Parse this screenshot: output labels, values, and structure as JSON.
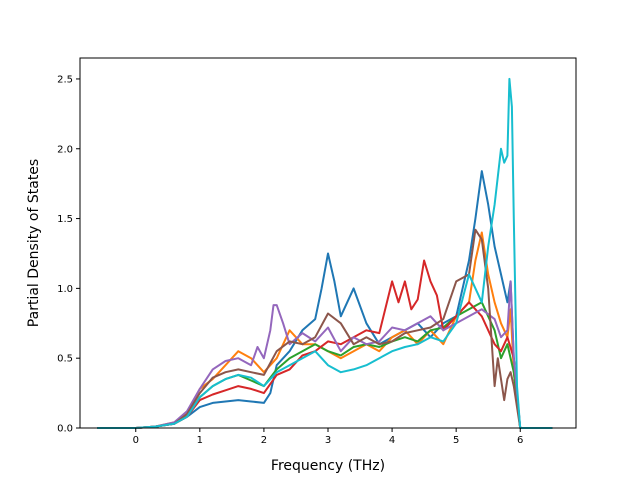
{
  "chart_data": {
    "type": "line",
    "title": "",
    "xlabel": "Frequency (THz)",
    "ylabel": "Partial Density of States",
    "xlim": [
      -0.87,
      6.87
    ],
    "ylim": [
      0.0,
      2.65
    ],
    "xticks": [
      0,
      1,
      2,
      3,
      4,
      5,
      6
    ],
    "xtick_labels": [
      "0",
      "1",
      "2",
      "3",
      "4",
      "5",
      "6"
    ],
    "yticks": [
      0.0,
      0.5,
      1.0,
      1.5,
      2.0,
      2.5
    ],
    "ytick_labels": [
      "0.0",
      "0.5",
      "1.0",
      "1.5",
      "2.0",
      "2.5"
    ],
    "grid": false,
    "series": [
      {
        "color": "#1f77b4",
        "x": [
          -0.6,
          0.0,
          0.3,
          0.6,
          0.8,
          1.0,
          1.2,
          1.4,
          1.6,
          1.8,
          2.0,
          2.1,
          2.2,
          2.4,
          2.6,
          2.8,
          2.9,
          3.0,
          3.1,
          3.2,
          3.4,
          3.6,
          3.8,
          4.0,
          4.2,
          4.4,
          4.6,
          4.8,
          5.0,
          5.2,
          5.3,
          5.4,
          5.5,
          5.6,
          5.7,
          5.75,
          5.8,
          5.85,
          5.9,
          6.0,
          6.5
        ],
        "y": [
          0.0,
          0.0,
          0.01,
          0.03,
          0.08,
          0.15,
          0.18,
          0.19,
          0.2,
          0.19,
          0.18,
          0.25,
          0.45,
          0.55,
          0.7,
          0.78,
          1.0,
          1.25,
          1.05,
          0.8,
          1.0,
          0.75,
          0.6,
          0.65,
          0.7,
          0.75,
          0.65,
          0.75,
          0.8,
          1.2,
          1.5,
          1.84,
          1.6,
          1.3,
          1.1,
          1.0,
          0.9,
          1.05,
          0.5,
          0.0,
          0.0
        ]
      },
      {
        "color": "#ff7f0e",
        "x": [
          -0.6,
          0.0,
          0.3,
          0.6,
          0.8,
          1.0,
          1.2,
          1.4,
          1.6,
          1.8,
          2.0,
          2.2,
          2.4,
          2.6,
          2.8,
          3.0,
          3.2,
          3.4,
          3.6,
          3.8,
          4.0,
          4.2,
          4.4,
          4.6,
          4.8,
          5.0,
          5.2,
          5.3,
          5.4,
          5.5,
          5.6,
          5.7,
          5.8,
          5.85,
          5.9,
          6.0,
          6.5
        ],
        "y": [
          0.0,
          0.0,
          0.01,
          0.04,
          0.1,
          0.28,
          0.35,
          0.45,
          0.55,
          0.5,
          0.4,
          0.5,
          0.7,
          0.6,
          0.6,
          0.55,
          0.5,
          0.55,
          0.6,
          0.55,
          0.65,
          0.7,
          0.6,
          0.7,
          0.6,
          0.8,
          0.9,
          1.2,
          1.4,
          1.1,
          0.9,
          0.75,
          0.65,
          0.85,
          0.4,
          0.0,
          0.0
        ]
      },
      {
        "color": "#2ca02c",
        "x": [
          -0.6,
          0.0,
          0.3,
          0.6,
          0.8,
          1.0,
          1.2,
          1.4,
          1.6,
          1.8,
          2.0,
          2.2,
          2.4,
          2.6,
          2.8,
          3.0,
          3.2,
          3.4,
          3.6,
          3.8,
          4.0,
          4.2,
          4.4,
          4.6,
          4.8,
          5.0,
          5.2,
          5.4,
          5.6,
          5.7,
          5.8,
          5.9,
          6.0,
          6.5
        ],
        "y": [
          0.0,
          0.0,
          0.01,
          0.03,
          0.08,
          0.22,
          0.3,
          0.35,
          0.38,
          0.34,
          0.3,
          0.42,
          0.5,
          0.55,
          0.6,
          0.55,
          0.52,
          0.58,
          0.6,
          0.58,
          0.62,
          0.65,
          0.62,
          0.7,
          0.72,
          0.8,
          0.85,
          0.9,
          0.7,
          0.5,
          0.6,
          0.4,
          0.0,
          0.0
        ]
      },
      {
        "color": "#d62728",
        "x": [
          -0.6,
          0.0,
          0.3,
          0.6,
          0.8,
          1.0,
          1.2,
          1.4,
          1.6,
          1.8,
          2.0,
          2.2,
          2.4,
          2.6,
          2.8,
          3.0,
          3.2,
          3.4,
          3.6,
          3.8,
          4.0,
          4.1,
          4.2,
          4.3,
          4.4,
          4.5,
          4.6,
          4.7,
          4.8,
          5.0,
          5.2,
          5.4,
          5.6,
          5.7,
          5.8,
          5.9,
          6.0,
          6.5
        ],
        "y": [
          0.0,
          0.0,
          0.01,
          0.03,
          0.08,
          0.2,
          0.24,
          0.27,
          0.3,
          0.28,
          0.25,
          0.38,
          0.42,
          0.52,
          0.55,
          0.62,
          0.6,
          0.65,
          0.7,
          0.68,
          1.05,
          0.9,
          1.05,
          0.85,
          0.92,
          1.2,
          1.05,
          0.95,
          0.7,
          0.8,
          0.9,
          0.8,
          0.6,
          0.55,
          0.65,
          0.5,
          0.0,
          0.0
        ]
      },
      {
        "color": "#9467bd",
        "x": [
          -0.6,
          0.0,
          0.3,
          0.6,
          0.8,
          1.0,
          1.2,
          1.4,
          1.6,
          1.8,
          1.9,
          2.0,
          2.1,
          2.15,
          2.2,
          2.3,
          2.4,
          2.6,
          2.8,
          3.0,
          3.2,
          3.4,
          3.6,
          3.8,
          4.0,
          4.2,
          4.4,
          4.6,
          4.8,
          5.0,
          5.2,
          5.4,
          5.6,
          5.7,
          5.8,
          5.85,
          5.9,
          6.0,
          6.5
        ],
        "y": [
          0.0,
          0.0,
          0.01,
          0.04,
          0.12,
          0.28,
          0.42,
          0.48,
          0.5,
          0.45,
          0.58,
          0.5,
          0.7,
          0.88,
          0.88,
          0.75,
          0.6,
          0.68,
          0.62,
          0.72,
          0.55,
          0.65,
          0.6,
          0.62,
          0.72,
          0.7,
          0.75,
          0.8,
          0.7,
          0.75,
          0.8,
          0.85,
          0.78,
          0.65,
          0.7,
          1.05,
          0.5,
          0.0,
          0.0
        ]
      },
      {
        "color": "#8c564b",
        "x": [
          -0.6,
          0.0,
          0.3,
          0.6,
          0.8,
          1.0,
          1.2,
          1.4,
          1.6,
          1.8,
          2.0,
          2.2,
          2.4,
          2.6,
          2.8,
          3.0,
          3.2,
          3.4,
          3.6,
          3.8,
          4.0,
          4.2,
          4.4,
          4.6,
          4.8,
          5.0,
          5.2,
          5.3,
          5.4,
          5.5,
          5.6,
          5.65,
          5.7,
          5.75,
          5.8,
          5.85,
          5.9,
          6.0,
          6.5
        ],
        "y": [
          0.0,
          0.0,
          0.01,
          0.03,
          0.1,
          0.25,
          0.36,
          0.4,
          0.42,
          0.4,
          0.38,
          0.55,
          0.62,
          0.6,
          0.65,
          0.82,
          0.75,
          0.6,
          0.65,
          0.6,
          0.62,
          0.68,
          0.7,
          0.72,
          0.78,
          1.05,
          1.1,
          1.42,
          1.35,
          1.0,
          0.3,
          0.5,
          0.35,
          0.2,
          0.35,
          0.4,
          0.3,
          0.0,
          0.0
        ]
      },
      {
        "color": "#17becf",
        "x": [
          -0.6,
          0.0,
          0.3,
          0.6,
          0.8,
          1.0,
          1.2,
          1.4,
          1.6,
          1.8,
          2.0,
          2.2,
          2.4,
          2.6,
          2.8,
          3.0,
          3.2,
          3.4,
          3.6,
          3.8,
          4.0,
          4.2,
          4.4,
          4.6,
          4.8,
          5.0,
          5.2,
          5.4,
          5.5,
          5.6,
          5.65,
          5.7,
          5.75,
          5.8,
          5.83,
          5.87,
          5.9,
          5.95,
          6.0,
          6.5
        ],
        "y": [
          0.0,
          0.0,
          0.01,
          0.03,
          0.08,
          0.22,
          0.3,
          0.35,
          0.38,
          0.36,
          0.3,
          0.4,
          0.45,
          0.5,
          0.55,
          0.45,
          0.4,
          0.42,
          0.45,
          0.5,
          0.55,
          0.58,
          0.6,
          0.65,
          0.62,
          0.75,
          1.1,
          0.9,
          1.3,
          1.6,
          1.8,
          2.0,
          1.9,
          1.95,
          2.5,
          2.3,
          1.5,
          0.3,
          0.0,
          0.0
        ]
      }
    ]
  }
}
